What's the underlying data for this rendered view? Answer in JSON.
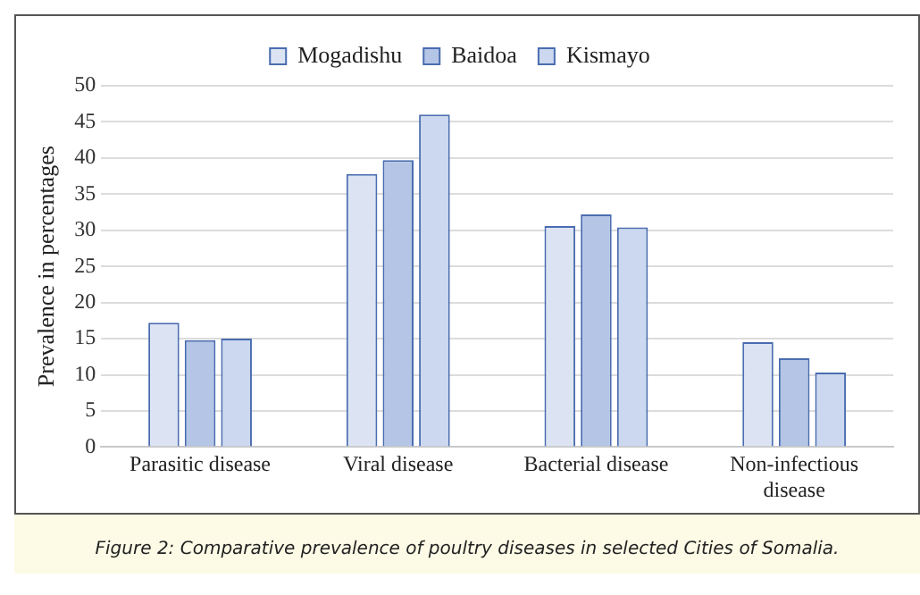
{
  "chart_data": {
    "type": "bar",
    "ylabel": "Prevalence in percentages",
    "categories": [
      "Parasitic disease",
      "Viral disease",
      "Bacterial disease",
      "Non-infectious disease"
    ],
    "series": [
      {
        "name": "Mogadishu",
        "color": "#dce4f4",
        "values": [
          17.2,
          37.8,
          30.6,
          14.5
        ]
      },
      {
        "name": "Baidoa",
        "color": "#b4c5e6",
        "values": [
          14.8,
          39.7,
          32.2,
          12.3
        ]
      },
      {
        "name": "Kismayo",
        "color": "#cbd8ef",
        "values": [
          15,
          46,
          30.4,
          10.3
        ]
      }
    ],
    "ylim": [
      0,
      50
    ],
    "yticks": [
      0,
      5,
      10,
      15,
      20,
      25,
      30,
      35,
      40,
      45,
      50
    ],
    "grid": "y",
    "legend": "top",
    "annotations": [
      "Figure 2: Comparative prevalence of poultry diseases in selected Cities of Somalia."
    ]
  }
}
